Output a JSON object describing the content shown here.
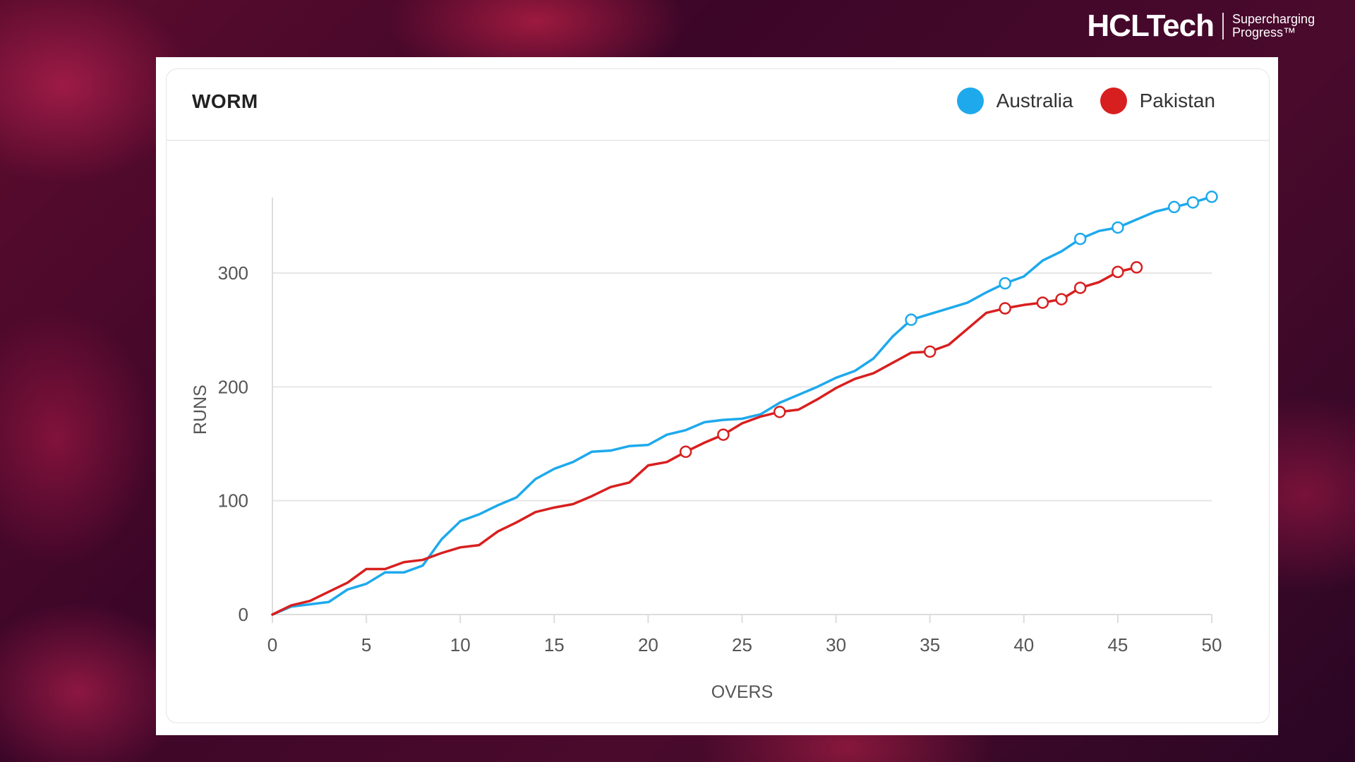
{
  "brand": {
    "name": "HCLTech",
    "tagline": "Supercharging Progress™"
  },
  "card": {
    "title": "WORM"
  },
  "chart_data": {
    "type": "line",
    "title": "WORM",
    "xlabel": "OVERS",
    "ylabel": "RUNS",
    "xlim": [
      0,
      50
    ],
    "ylim": [
      0,
      367
    ],
    "xticks": [
      0,
      5,
      10,
      15,
      20,
      25,
      30,
      35,
      40,
      45,
      50
    ],
    "yticks": [
      0,
      100,
      200,
      300
    ],
    "grid": "horizontal",
    "legend_position": "top-right",
    "series": [
      {
        "name": "Australia",
        "color": "#1ea9ec",
        "x": [
          0,
          1,
          2,
          3,
          4,
          5,
          6,
          7,
          8,
          9,
          10,
          11,
          12,
          13,
          14,
          15,
          16,
          17,
          18,
          19,
          20,
          21,
          22,
          23,
          24,
          25,
          26,
          27,
          28,
          29,
          30,
          31,
          32,
          33,
          34,
          35,
          36,
          37,
          38,
          39,
          40,
          41,
          42,
          43,
          44,
          45,
          46,
          47,
          48,
          49,
          50
        ],
        "values": [
          0,
          7,
          9,
          11,
          22,
          27,
          37,
          37,
          43,
          66,
          82,
          88,
          96,
          103,
          119,
          128,
          134,
          143,
          144,
          148,
          149,
          158,
          162,
          169,
          171,
          172,
          176,
          186,
          193,
          200,
          208,
          214,
          225,
          244,
          259,
          264,
          269,
          274,
          283,
          291,
          297,
          311,
          319,
          330,
          337,
          340,
          347,
          354,
          358,
          362,
          367
        ],
        "wickets_at_overs": [
          34,
          39,
          43,
          45,
          48,
          49,
          50
        ]
      },
      {
        "name": "Pakistan",
        "color": "#d81f1f",
        "x": [
          0,
          1,
          2,
          3,
          4,
          5,
          6,
          7,
          8,
          9,
          10,
          11,
          12,
          13,
          14,
          15,
          16,
          17,
          18,
          19,
          20,
          21,
          22,
          23,
          24,
          25,
          26,
          27,
          28,
          29,
          30,
          31,
          32,
          33,
          34,
          35,
          36,
          37,
          38,
          39,
          40,
          41,
          42,
          43,
          44,
          45,
          46
        ],
        "values": [
          0,
          8,
          12,
          20,
          28,
          40,
          40,
          46,
          48,
          54,
          59,
          61,
          73,
          81,
          90,
          94,
          97,
          104,
          112,
          116,
          131,
          134,
          143,
          151,
          158,
          168,
          174,
          178,
          180,
          189,
          199,
          207,
          212,
          221,
          230,
          231,
          237,
          251,
          265,
          269,
          272,
          274,
          277,
          287,
          292,
          301,
          305
        ],
        "wickets_at_overs": [
          22,
          24,
          27,
          35,
          39,
          41,
          42,
          43,
          45,
          46
        ]
      }
    ]
  }
}
